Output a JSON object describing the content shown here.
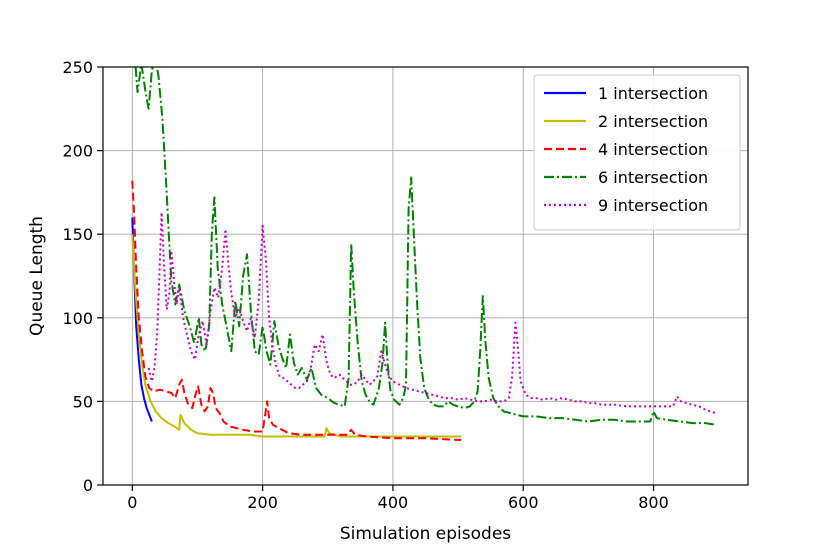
{
  "chart_data": {
    "type": "line",
    "title": "",
    "xlabel": "Simulation episodes",
    "ylabel": "Queue Length",
    "xlim": [
      -45,
      945
    ],
    "ylim": [
      0,
      250
    ],
    "xticks": [
      0,
      200,
      400,
      600,
      800
    ],
    "yticks": [
      0,
      50,
      100,
      150,
      200,
      250
    ],
    "grid": true,
    "legend_position": "top-right",
    "series": [
      {
        "name": "1 intersection",
        "color": "#0000ff",
        "dash": "solid",
        "points": [
          [
            0,
            160
          ],
          [
            3,
            125
          ],
          [
            6,
            95
          ],
          [
            10,
            75
          ],
          [
            14,
            60
          ],
          [
            18,
            52
          ],
          [
            22,
            46
          ],
          [
            26,
            42
          ],
          [
            30,
            38
          ]
        ]
      },
      {
        "name": "2 intersection",
        "color": "#bfbf00",
        "dash": "solid",
        "points": [
          [
            0,
            150
          ],
          [
            5,
            115
          ],
          [
            10,
            90
          ],
          [
            15,
            72
          ],
          [
            20,
            60
          ],
          [
            28,
            50
          ],
          [
            36,
            44
          ],
          [
            45,
            40
          ],
          [
            55,
            37
          ],
          [
            65,
            35
          ],
          [
            72,
            33
          ],
          [
            74,
            42
          ],
          [
            80,
            37
          ],
          [
            90,
            33
          ],
          [
            100,
            31
          ],
          [
            120,
            30
          ],
          [
            150,
            30
          ],
          [
            180,
            30
          ],
          [
            200,
            29
          ],
          [
            250,
            29
          ],
          [
            295,
            29
          ],
          [
            298,
            34
          ],
          [
            302,
            31
          ],
          [
            320,
            29
          ],
          [
            400,
            29
          ],
          [
            450,
            29
          ],
          [
            505,
            29
          ]
        ]
      },
      {
        "name": "4 intersection",
        "color": "#ff0000",
        "dash": "dashed",
        "points": [
          [
            0,
            182
          ],
          [
            3,
            160
          ],
          [
            6,
            130
          ],
          [
            10,
            100
          ],
          [
            15,
            80
          ],
          [
            20,
            65
          ],
          [
            26,
            58
          ],
          [
            33,
            56
          ],
          [
            42,
            57
          ],
          [
            52,
            56
          ],
          [
            60,
            55
          ],
          [
            66,
            52
          ],
          [
            72,
            60
          ],
          [
            76,
            63
          ],
          [
            80,
            55
          ],
          [
            86,
            48
          ],
          [
            92,
            46
          ],
          [
            97,
            54
          ],
          [
            101,
            59
          ],
          [
            106,
            48
          ],
          [
            111,
            44
          ],
          [
            116,
            47
          ],
          [
            120,
            58
          ],
          [
            124,
            55
          ],
          [
            128,
            46
          ],
          [
            134,
            43
          ],
          [
            140,
            38
          ],
          [
            150,
            35
          ],
          [
            160,
            34
          ],
          [
            170,
            33
          ],
          [
            185,
            32
          ],
          [
            200,
            32
          ],
          [
            204,
            42
          ],
          [
            207,
            50
          ],
          [
            210,
            40
          ],
          [
            216,
            36
          ],
          [
            225,
            34
          ],
          [
            240,
            31
          ],
          [
            260,
            30
          ],
          [
            300,
            30
          ],
          [
            330,
            30
          ],
          [
            336,
            33
          ],
          [
            342,
            30
          ],
          [
            360,
            29
          ],
          [
            400,
            28
          ],
          [
            450,
            28
          ],
          [
            500,
            27
          ],
          [
            505,
            27
          ]
        ]
      },
      {
        "name": "6 intersection",
        "color": "#008000",
        "dash": "dashdot",
        "points": [
          [
            5,
            250
          ],
          [
            8,
            235
          ],
          [
            14,
            252
          ],
          [
            20,
            236
          ],
          [
            25,
            225
          ],
          [
            30,
            248
          ],
          [
            35,
            255
          ],
          [
            40,
            245
          ],
          [
            46,
            220
          ],
          [
            52,
            180
          ],
          [
            56,
            150
          ],
          [
            60,
            122
          ],
          [
            66,
            108
          ],
          [
            72,
            120
          ],
          [
            80,
            104
          ],
          [
            88,
            95
          ],
          [
            95,
            85
          ],
          [
            102,
            100
          ],
          [
            106,
            84
          ],
          [
            112,
            80
          ],
          [
            118,
            95
          ],
          [
            122,
            150
          ],
          [
            126,
            172
          ],
          [
            131,
            130
          ],
          [
            138,
            108
          ],
          [
            145,
            94
          ],
          [
            152,
            80
          ],
          [
            158,
            110
          ],
          [
            164,
            95
          ],
          [
            170,
            125
          ],
          [
            176,
            138
          ],
          [
            182,
            104
          ],
          [
            188,
            80
          ],
          [
            194,
            78
          ],
          [
            200,
            95
          ],
          [
            206,
            80
          ],
          [
            212,
            72
          ],
          [
            218,
            98
          ],
          [
            224,
            84
          ],
          [
            230,
            76
          ],
          [
            236,
            70
          ],
          [
            242,
            90
          ],
          [
            248,
            73
          ],
          [
            254,
            66
          ],
          [
            260,
            70
          ],
          [
            268,
            63
          ],
          [
            275,
            70
          ],
          [
            282,
            58
          ],
          [
            290,
            54
          ],
          [
            300,
            52
          ],
          [
            310,
            49
          ],
          [
            318,
            48
          ],
          [
            326,
            47
          ],
          [
            332,
            64
          ],
          [
            336,
            144
          ],
          [
            340,
            116
          ],
          [
            346,
            85
          ],
          [
            352,
            62
          ],
          [
            358,
            54
          ],
          [
            364,
            50
          ],
          [
            370,
            48
          ],
          [
            378,
            57
          ],
          [
            384,
            73
          ],
          [
            388,
            97
          ],
          [
            392,
            72
          ],
          [
            396,
            57
          ],
          [
            402,
            51
          ],
          [
            410,
            48
          ],
          [
            416,
            52
          ],
          [
            420,
            60
          ],
          [
            424,
            165
          ],
          [
            428,
            184
          ],
          [
            432,
            150
          ],
          [
            437,
            110
          ],
          [
            442,
            76
          ],
          [
            448,
            58
          ],
          [
            455,
            51
          ],
          [
            462,
            48
          ],
          [
            470,
            47
          ],
          [
            478,
            47
          ],
          [
            485,
            50
          ],
          [
            492,
            48
          ],
          [
            500,
            47
          ],
          [
            510,
            46
          ],
          [
            518,
            47
          ],
          [
            525,
            50
          ],
          [
            530,
            56
          ],
          [
            534,
            80
          ],
          [
            538,
            113
          ],
          [
            542,
            86
          ],
          [
            547,
            64
          ],
          [
            554,
            52
          ],
          [
            562,
            47
          ],
          [
            570,
            44
          ],
          [
            580,
            43
          ],
          [
            590,
            42
          ],
          [
            600,
            41
          ],
          [
            620,
            41
          ],
          [
            640,
            40
          ],
          [
            660,
            40
          ],
          [
            680,
            39
          ],
          [
            700,
            38
          ],
          [
            720,
            39
          ],
          [
            740,
            39
          ],
          [
            760,
            38
          ],
          [
            780,
            38
          ],
          [
            795,
            38
          ],
          [
            800,
            44
          ],
          [
            805,
            40
          ],
          [
            820,
            39
          ],
          [
            840,
            38
          ],
          [
            860,
            37
          ],
          [
            880,
            37
          ],
          [
            895,
            36
          ]
        ]
      },
      {
        "name": "9 intersection",
        "color": "#bf00bf",
        "dash": "dotted",
        "points": [
          [
            25,
            70
          ],
          [
            30,
            62
          ],
          [
            34,
            70
          ],
          [
            38,
            90
          ],
          [
            42,
            130
          ],
          [
            45,
            163
          ],
          [
            49,
            130
          ],
          [
            53,
            105
          ],
          [
            57,
            115
          ],
          [
            60,
            140
          ],
          [
            64,
            122
          ],
          [
            68,
            108
          ],
          [
            72,
            118
          ],
          [
            78,
            100
          ],
          [
            84,
            90
          ],
          [
            90,
            80
          ],
          [
            96,
            75
          ],
          [
            102,
            90
          ],
          [
            108,
            98
          ],
          [
            114,
            84
          ],
          [
            120,
            104
          ],
          [
            126,
            118
          ],
          [
            132,
            112
          ],
          [
            138,
            130
          ],
          [
            143,
            153
          ],
          [
            148,
            130
          ],
          [
            152,
            115
          ],
          [
            158,
            100
          ],
          [
            164,
            106
          ],
          [
            170,
            98
          ],
          [
            176,
            92
          ],
          [
            182,
            100
          ],
          [
            188,
            88
          ],
          [
            194,
            110
          ],
          [
            200,
            155
          ],
          [
            205,
            135
          ],
          [
            210,
            100
          ],
          [
            215,
            84
          ],
          [
            220,
            72
          ],
          [
            226,
            65
          ],
          [
            232,
            64
          ],
          [
            238,
            62
          ],
          [
            244,
            60
          ],
          [
            250,
            58
          ],
          [
            256,
            58
          ],
          [
            262,
            60
          ],
          [
            268,
            62
          ],
          [
            274,
            70
          ],
          [
            280,
            84
          ],
          [
            286,
            80
          ],
          [
            292,
            90
          ],
          [
            298,
            74
          ],
          [
            304,
            66
          ],
          [
            310,
            64
          ],
          [
            318,
            66
          ],
          [
            326,
            63
          ],
          [
            334,
            60
          ],
          [
            340,
            60
          ],
          [
            346,
            62
          ],
          [
            352,
            66
          ],
          [
            358,
            63
          ],
          [
            364,
            60
          ],
          [
            370,
            62
          ],
          [
            376,
            65
          ],
          [
            382,
            80
          ],
          [
            388,
            72
          ],
          [
            394,
            65
          ],
          [
            400,
            62
          ],
          [
            410,
            60
          ],
          [
            420,
            58
          ],
          [
            430,
            57
          ],
          [
            440,
            56
          ],
          [
            450,
            55
          ],
          [
            460,
            54
          ],
          [
            470,
            53
          ],
          [
            480,
            52
          ],
          [
            490,
            52
          ],
          [
            500,
            51
          ],
          [
            510,
            52
          ],
          [
            520,
            51
          ],
          [
            530,
            50
          ],
          [
            540,
            50
          ],
          [
            550,
            51
          ],
          [
            560,
            50
          ],
          [
            570,
            50
          ],
          [
            578,
            52
          ],
          [
            583,
            65
          ],
          [
            588,
            97
          ],
          [
            592,
            82
          ],
          [
            596,
            62
          ],
          [
            604,
            54
          ],
          [
            612,
            52
          ],
          [
            620,
            52
          ],
          [
            630,
            51
          ],
          [
            640,
            52
          ],
          [
            650,
            51
          ],
          [
            660,
            52
          ],
          [
            670,
            51
          ],
          [
            680,
            50
          ],
          [
            690,
            50
          ],
          [
            700,
            49
          ],
          [
            710,
            49
          ],
          [
            720,
            48
          ],
          [
            740,
            48
          ],
          [
            760,
            47
          ],
          [
            780,
            47
          ],
          [
            800,
            47
          ],
          [
            820,
            47
          ],
          [
            830,
            47
          ],
          [
            836,
            53
          ],
          [
            842,
            50
          ],
          [
            850,
            49
          ],
          [
            860,
            48
          ],
          [
            870,
            47
          ],
          [
            880,
            45
          ],
          [
            895,
            43
          ]
        ]
      }
    ]
  }
}
